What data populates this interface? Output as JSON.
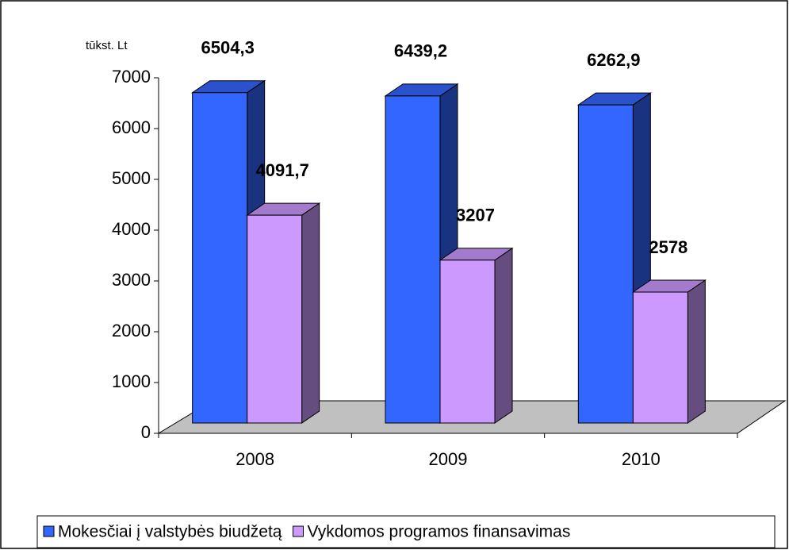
{
  "chart_data": {
    "type": "bar3d",
    "y_label": "tūkst. Lt",
    "categories": [
      "2008",
      "2009",
      "2010"
    ],
    "series": [
      {
        "name": "Mokesčiai į valstybės biudžetą",
        "color": "#3366ff",
        "values": [
          6504.3,
          6439.2,
          6262.9
        ],
        "value_labels": [
          "6504,3",
          "6439,2",
          "6262,9"
        ]
      },
      {
        "name": "Vykdomos programos finansavimas",
        "color": "#cc99ff",
        "values": [
          4091.7,
          3207,
          2578
        ],
        "value_labels": [
          "4091,7",
          "3207",
          "2578"
        ]
      }
    ],
    "ylim": [
      0,
      7000
    ],
    "yticks": [
      0,
      1000,
      2000,
      3000,
      4000,
      5000,
      6000,
      7000
    ],
    "legend": "bottom"
  }
}
